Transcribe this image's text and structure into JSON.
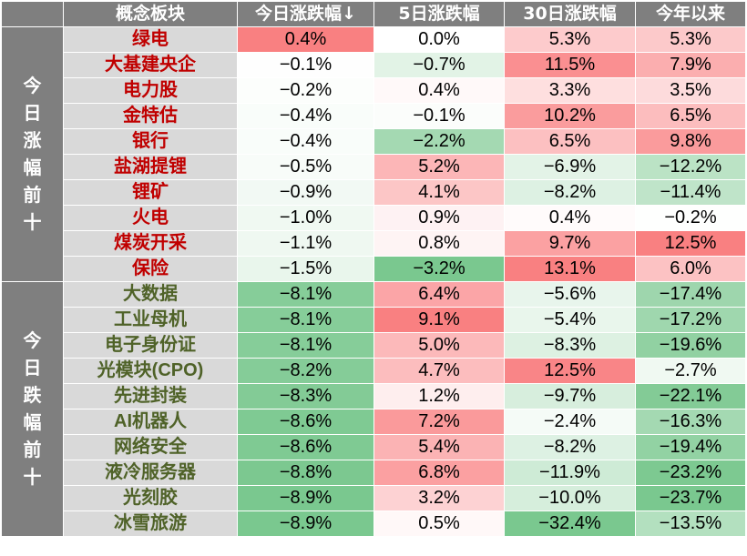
{
  "header": {
    "col_sector": "概念板块",
    "col_day": "今日涨跌幅↓",
    "col_5d": "5日涨跌幅",
    "col_30d": "30日涨跌幅",
    "col_ytd": "今年以来"
  },
  "groups": [
    {
      "label_chars": [
        "今",
        "日",
        "涨",
        "幅",
        "前",
        "十"
      ],
      "direction": "up",
      "rows": [
        {
          "name": "绿电",
          "day": "0.4%",
          "d5": "0.0%",
          "d30": "5.3%",
          "ytd": "5.3%",
          "nday": 0.4,
          "n5": 0.0,
          "n30": 5.3,
          "nytd": 5.3
        },
        {
          "name": "大基建央企",
          "day": "−0.1%",
          "d5": "−0.7%",
          "d30": "11.5%",
          "ytd": "7.9%",
          "nday": -0.1,
          "n5": -0.7,
          "n30": 11.5,
          "nytd": 7.9
        },
        {
          "name": "电力股",
          "day": "−0.2%",
          "d5": "0.4%",
          "d30": "3.3%",
          "ytd": "3.5%",
          "nday": -0.2,
          "n5": 0.4,
          "n30": 3.3,
          "nytd": 3.5
        },
        {
          "name": "金特估",
          "day": "−0.4%",
          "d5": "−0.1%",
          "d30": "10.2%",
          "ytd": "6.5%",
          "nday": -0.4,
          "n5": -0.1,
          "n30": 10.2,
          "nytd": 6.5
        },
        {
          "name": "银行",
          "day": "−0.4%",
          "d5": "−2.2%",
          "d30": "6.5%",
          "ytd": "9.8%",
          "nday": -0.4,
          "n5": -2.2,
          "n30": 6.5,
          "nytd": 9.8
        },
        {
          "name": "盐湖提锂",
          "day": "−0.5%",
          "d5": "5.2%",
          "d30": "−6.9%",
          "ytd": "−12.2%",
          "nday": -0.5,
          "n5": 5.2,
          "n30": -6.9,
          "nytd": -12.2
        },
        {
          "name": "锂矿",
          "day": "−0.9%",
          "d5": "4.1%",
          "d30": "−8.2%",
          "ytd": "−11.4%",
          "nday": -0.9,
          "n5": 4.1,
          "n30": -8.2,
          "nytd": -11.4
        },
        {
          "name": "火电",
          "day": "−1.0%",
          "d5": "0.9%",
          "d30": "0.4%",
          "ytd": "−0.2%",
          "nday": -1.0,
          "n5": 0.9,
          "n30": 0.4,
          "nytd": -0.2
        },
        {
          "name": "煤炭开采",
          "day": "−1.1%",
          "d5": "0.8%",
          "d30": "9.7%",
          "ytd": "12.5%",
          "nday": -1.1,
          "n5": 0.8,
          "n30": 9.7,
          "nytd": 12.5
        },
        {
          "name": "保险",
          "day": "−1.5%",
          "d5": "−3.2%",
          "d30": "13.1%",
          "ytd": "6.0%",
          "nday": -1.5,
          "n5": -3.2,
          "n30": 13.1,
          "nytd": 6.0
        }
      ]
    },
    {
      "label_chars": [
        "今",
        "日",
        "跌",
        "幅",
        "前",
        "十"
      ],
      "direction": "down",
      "rows": [
        {
          "name": "大数据",
          "day": "−8.1%",
          "d5": "6.4%",
          "d30": "−5.6%",
          "ytd": "−17.4%",
          "nday": -8.1,
          "n5": 6.4,
          "n30": -5.6,
          "nytd": -17.4
        },
        {
          "name": "工业母机",
          "day": "−8.1%",
          "d5": "9.1%",
          "d30": "−5.4%",
          "ytd": "−17.2%",
          "nday": -8.1,
          "n5": 9.1,
          "n30": -5.4,
          "nytd": -17.2
        },
        {
          "name": "电子身份证",
          "day": "−8.1%",
          "d5": "5.0%",
          "d30": "−8.3%",
          "ytd": "−19.6%",
          "nday": -8.1,
          "n5": 5.0,
          "n30": -8.3,
          "nytd": -19.6
        },
        {
          "name": "光模块(CPO)",
          "day": "−8.2%",
          "d5": "4.7%",
          "d30": "12.5%",
          "ytd": "−2.7%",
          "nday": -8.2,
          "n5": 4.7,
          "n30": 12.5,
          "nytd": -2.7
        },
        {
          "name": "先进封装",
          "day": "−8.3%",
          "d5": "1.2%",
          "d30": "−9.7%",
          "ytd": "−22.1%",
          "nday": -8.3,
          "n5": 1.2,
          "n30": -9.7,
          "nytd": -22.1
        },
        {
          "name": "AI机器人",
          "day": "−8.6%",
          "d5": "7.2%",
          "d30": "−2.4%",
          "ytd": "−16.3%",
          "nday": -8.6,
          "n5": 7.2,
          "n30": -2.4,
          "nytd": -16.3
        },
        {
          "name": "网络安全",
          "day": "−8.6%",
          "d5": "5.4%",
          "d30": "−8.2%",
          "ytd": "−19.4%",
          "nday": -8.6,
          "n5": 5.4,
          "n30": -8.2,
          "nytd": -19.4
        },
        {
          "name": "液冷服务器",
          "day": "−8.8%",
          "d5": "6.8%",
          "d30": "−11.9%",
          "ytd": "−23.2%",
          "nday": -8.8,
          "n5": 6.8,
          "n30": -11.9,
          "nytd": -23.2
        },
        {
          "name": "光刻胶",
          "day": "−8.9%",
          "d5": "3.2%",
          "d30": "−10.0%",
          "ytd": "−23.7%",
          "nday": -8.9,
          "n5": 3.2,
          "n30": -10.0,
          "nytd": -23.7
        },
        {
          "name": "冰雪旅游",
          "day": "−8.9%",
          "d5": "0.5%",
          "d30": "−32.4%",
          "ytd": "−13.5%",
          "nday": -8.9,
          "n5": 0.5,
          "n30": -32.4,
          "nytd": -13.5
        }
      ]
    }
  ],
  "colors": {
    "header_bg": "#7f7f7f",
    "name_bg": "#d9d9d9",
    "up_text": "#c00000",
    "down_text": "#4f6228",
    "pos_max": "#f8696b",
    "neg_max": "#63be7b",
    "neutral": "#ffffff"
  }
}
